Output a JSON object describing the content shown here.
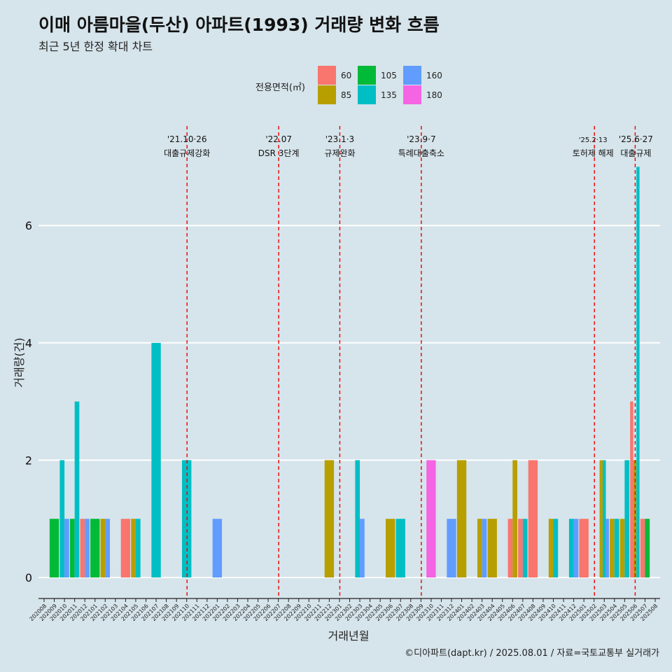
{
  "title": "이매 아름마을(두산) 아파트(1993) 거래량 변화 흐름",
  "subtitle": "최근 5년 한정 확대 차트",
  "caption": "©디아파트(dapt.kr) / 2025.08.01 / 자료=국토교통부 실거래가",
  "legend_title": "전용면적(㎡)",
  "colors": {
    "60": "#f8766d",
    "85": "#b79f00",
    "105": "#00ba38",
    "135": "#00bfc4",
    "160": "#619cff",
    "180": "#f564e3",
    "vline": "#ee0000",
    "grid": "#ffffff"
  },
  "chart_data": {
    "type": "bar",
    "xlabel": "거래년월",
    "ylabel": "거래량(건)",
    "ylim": [
      0,
      7
    ],
    "yticks": [
      0,
      2,
      4,
      6
    ],
    "grid": true,
    "legend_position": "top",
    "series_names": [
      "60",
      "85",
      "105",
      "135",
      "160",
      "180"
    ],
    "categories": [
      "202008",
      "202009",
      "202010",
      "202011",
      "202012",
      "202101",
      "202102",
      "202103",
      "202104",
      "202105",
      "202106",
      "202107",
      "202108",
      "202109",
      "202110",
      "202111",
      "202112",
      "202201",
      "202202",
      "202203",
      "202204",
      "202205",
      "202206",
      "202207",
      "202208",
      "202209",
      "202210",
      "202211",
      "202212",
      "202301",
      "202302",
      "202303",
      "202304",
      "202305",
      "202306",
      "202307",
      "202308",
      "202309",
      "202310",
      "202311",
      "202312",
      "202401",
      "202402",
      "202403",
      "202404",
      "202405",
      "202406",
      "202407",
      "202408",
      "202409",
      "202410",
      "202411",
      "202412",
      "202501",
      "202502",
      "202503",
      "202504",
      "202505",
      "202506",
      "202507",
      "202508"
    ],
    "bars": [
      {
        "month": "202009",
        "area": "105",
        "value": 1
      },
      {
        "month": "202010",
        "area": "135",
        "value": 2
      },
      {
        "month": "202010",
        "area": "160",
        "value": 1
      },
      {
        "month": "202011",
        "area": "105",
        "value": 1
      },
      {
        "month": "202011",
        "area": "135",
        "value": 3
      },
      {
        "month": "202012",
        "area": "60",
        "value": 1
      },
      {
        "month": "202012",
        "area": "160",
        "value": 1
      },
      {
        "month": "202101",
        "area": "105",
        "value": 1
      },
      {
        "month": "202102",
        "area": "85",
        "value": 1
      },
      {
        "month": "202102",
        "area": "160",
        "value": 1
      },
      {
        "month": "202104",
        "area": "60",
        "value": 1
      },
      {
        "month": "202105",
        "area": "85",
        "value": 1
      },
      {
        "month": "202105",
        "area": "135",
        "value": 1
      },
      {
        "month": "202107",
        "area": "135",
        "value": 4
      },
      {
        "month": "202110",
        "area": "135",
        "value": 2
      },
      {
        "month": "202201",
        "area": "160",
        "value": 1
      },
      {
        "month": "202212",
        "area": "85",
        "value": 2
      },
      {
        "month": "202303",
        "area": "135",
        "value": 2
      },
      {
        "month": "202303",
        "area": "160",
        "value": 1
      },
      {
        "month": "202306",
        "area": "85",
        "value": 1
      },
      {
        "month": "202307",
        "area": "135",
        "value": 1
      },
      {
        "month": "202310",
        "area": "180",
        "value": 2
      },
      {
        "month": "202312",
        "area": "160",
        "value": 1
      },
      {
        "month": "202401",
        "area": "85",
        "value": 2
      },
      {
        "month": "202403",
        "area": "85",
        "value": 1
      },
      {
        "month": "202403",
        "area": "160",
        "value": 1
      },
      {
        "month": "202404",
        "area": "85",
        "value": 1
      },
      {
        "month": "202406",
        "area": "60",
        "value": 1
      },
      {
        "month": "202406",
        "area": "85",
        "value": 2
      },
      {
        "month": "202407",
        "area": "60",
        "value": 1
      },
      {
        "month": "202407",
        "area": "135",
        "value": 1
      },
      {
        "month": "202408",
        "area": "60",
        "value": 2
      },
      {
        "month": "202410",
        "area": "85",
        "value": 1
      },
      {
        "month": "202410",
        "area": "135",
        "value": 1
      },
      {
        "month": "202412",
        "area": "135",
        "value": 1
      },
      {
        "month": "202412",
        "area": "160",
        "value": 1
      },
      {
        "month": "202501",
        "area": "60",
        "value": 1
      },
      {
        "month": "202503",
        "area": "85",
        "value": 2
      },
      {
        "month": "202503",
        "area": "135",
        "value": 2
      },
      {
        "month": "202503",
        "area": "160",
        "value": 1
      },
      {
        "month": "202504",
        "area": "85",
        "value": 1
      },
      {
        "month": "202504",
        "area": "135",
        "value": 1
      },
      {
        "month": "202505",
        "area": "85",
        "value": 1
      },
      {
        "month": "202505",
        "area": "135",
        "value": 2
      },
      {
        "month": "202506",
        "area": "60",
        "value": 3
      },
      {
        "month": "202506",
        "area": "85",
        "value": 2
      },
      {
        "month": "202506",
        "area": "135",
        "value": 7
      },
      {
        "month": "202507",
        "area": "60",
        "value": 1
      },
      {
        "month": "202507",
        "area": "105",
        "value": 1
      }
    ],
    "annotations": [
      {
        "month": "202110",
        "date": "'21.10·26",
        "label": "대출규제강화"
      },
      {
        "month": "202207",
        "date": "'22.07",
        "label": "DSR 3단계"
      },
      {
        "month": "202301",
        "date": "'23.1·3",
        "label": "규제완화"
      },
      {
        "month": "202309",
        "date": "'23.9·7",
        "label": "특례대출축소"
      },
      {
        "month": "202502",
        "date": "'25.2·13",
        "label": "토허제 해제"
      },
      {
        "month": "202506",
        "date": "'25.6·27",
        "label": "대출규제"
      }
    ]
  }
}
